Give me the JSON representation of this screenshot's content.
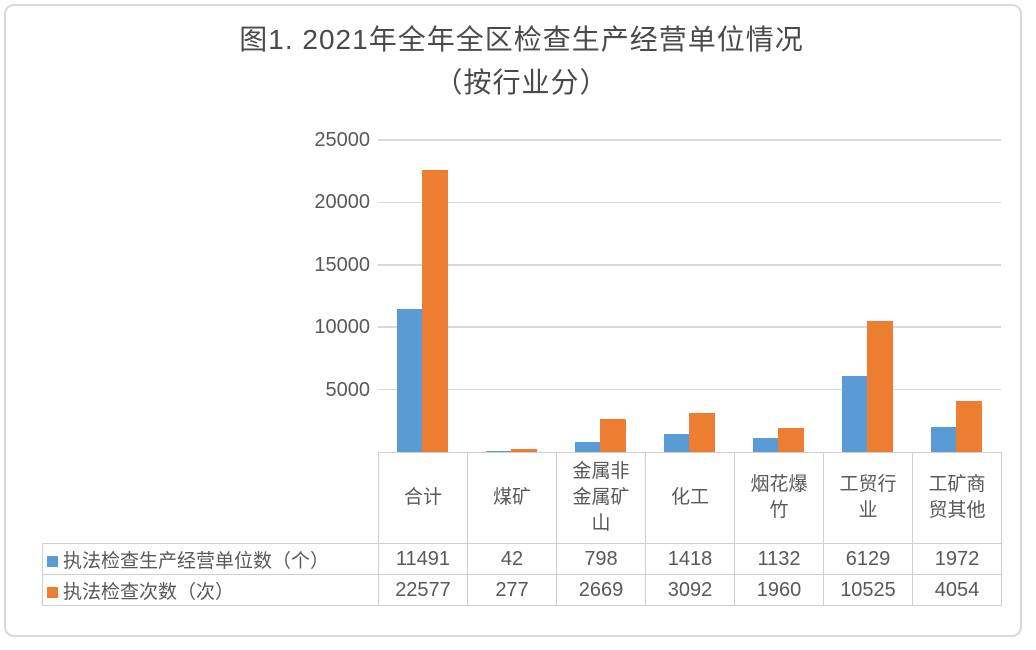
{
  "title": {
    "line1": "图1. 2021年全年全区检查生产经营单位情况",
    "line2": "（按行业分）"
  },
  "chart_data": {
    "type": "bar",
    "title": "图1. 2021年全年全区检查生产经营单位情况（按行业分）",
    "categories": [
      "合计",
      "煤矿",
      "金属非金属矿山",
      "化工",
      "烟花爆竹",
      "工贸行业",
      "工矿商贸其他"
    ],
    "series": [
      {
        "name": "执法检查生产经营单位数（个）",
        "color": "#5B9BD5",
        "values": [
          11491,
          42,
          798,
          1418,
          1132,
          6129,
          1972
        ]
      },
      {
        "name": "执法检查次数（次）",
        "color": "#ED7D31",
        "values": [
          22577,
          277,
          2669,
          3092,
          1960,
          10525,
          4054
        ]
      }
    ],
    "xlabel": "",
    "ylabel": "",
    "ylim": [
      0,
      25000
    ],
    "y_ticks": [
      5000,
      10000,
      15000,
      20000,
      25000
    ],
    "grid": true,
    "legend_position": "table-rows-left",
    "colors": {
      "series_blue": "#5B9BD5",
      "series_orange": "#ED7D31",
      "gridline": "#D9D9D9",
      "table_border": "#CFCFCF",
      "text": "#595959"
    }
  }
}
